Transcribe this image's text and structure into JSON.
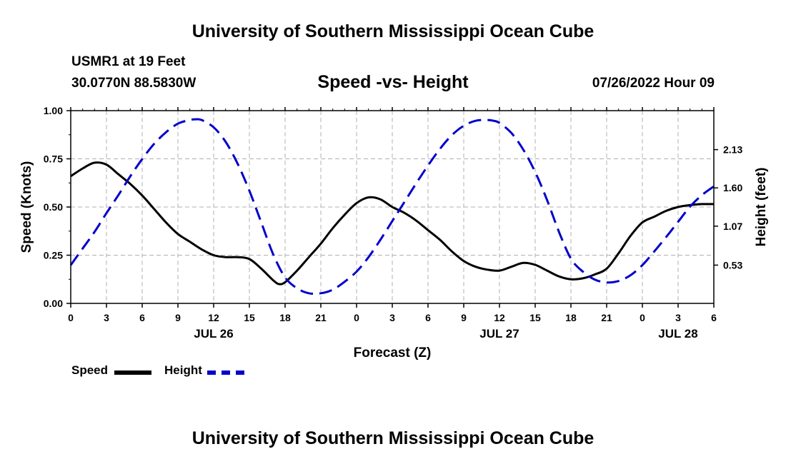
{
  "header": {
    "title": "University of Southern Mississippi Ocean Cube",
    "station": "USMR1 at 19 Feet",
    "coords": "30.0770N  88.5830W",
    "subtitle": "Speed -vs- Height",
    "datetime": "07/26/2022 Hour 09"
  },
  "footer": {
    "title": "University of Southern Mississippi Ocean Cube"
  },
  "legend": {
    "speed_label": "Speed",
    "height_label": "Height"
  },
  "chart_data": {
    "type": "line",
    "title": "Speed -vs- Height",
    "xlabel": "Forecast (Z)",
    "ylabel": "Speed (Knots)",
    "y2label": "Height (feet)",
    "x_unit": "forecast hours from 00Z JUL 26",
    "xlim": [
      0,
      54
    ],
    "ylim": [
      0,
      1
    ],
    "y2lim": [
      0.0,
      2.67
    ],
    "x_ticks": [
      0,
      3,
      6,
      9,
      12,
      15,
      18,
      21,
      24,
      27,
      30,
      33,
      36,
      39,
      42,
      45,
      48,
      51,
      54
    ],
    "x_tick_labels": [
      "0",
      "3",
      "6",
      "9",
      "12",
      "15",
      "18",
      "21",
      "0",
      "3",
      "6",
      "9",
      "12",
      "15",
      "18",
      "21",
      "0",
      "3",
      "6"
    ],
    "y_ticks": [
      0,
      0.25,
      0.5,
      0.75,
      1.0
    ],
    "y_tick_labels": [
      "0.00",
      "0.25",
      "0.50",
      "0.75",
      "1.00"
    ],
    "y2_ticks": [
      0.53,
      1.07,
      1.6,
      2.13
    ],
    "y2_tick_labels": [
      "0.53",
      "1.07",
      "1.60",
      "2.13"
    ],
    "date_labels": [
      {
        "x": 12,
        "label": "JUL 26"
      },
      {
        "x": 36,
        "label": "JUL 27"
      },
      {
        "x": 51,
        "label": "JUL 28"
      }
    ],
    "grid": true,
    "legend_position": "bottom-left",
    "series": [
      {
        "name": "Speed",
        "axis": "left",
        "color": "#000000",
        "style": "solid",
        "x": [
          0,
          1,
          2,
          3,
          4,
          5,
          6,
          7,
          8,
          9,
          10,
          11,
          12,
          13,
          14,
          15,
          16,
          17,
          17.5,
          18,
          19,
          20,
          21,
          22,
          23,
          24,
          25,
          26,
          27,
          28,
          29,
          30,
          31,
          32,
          33,
          34,
          35,
          36,
          37,
          38,
          39,
          40,
          41,
          42,
          43,
          44,
          45,
          46,
          47,
          48,
          49,
          50,
          51,
          52,
          53,
          54
        ],
        "values": [
          0.66,
          0.7,
          0.73,
          0.72,
          0.67,
          0.62,
          0.56,
          0.49,
          0.42,
          0.36,
          0.32,
          0.28,
          0.25,
          0.24,
          0.24,
          0.23,
          0.18,
          0.12,
          0.1,
          0.11,
          0.17,
          0.24,
          0.31,
          0.39,
          0.46,
          0.52,
          0.55,
          0.54,
          0.5,
          0.47,
          0.43,
          0.38,
          0.33,
          0.27,
          0.22,
          0.19,
          0.175,
          0.17,
          0.19,
          0.21,
          0.2,
          0.17,
          0.14,
          0.125,
          0.13,
          0.15,
          0.18,
          0.26,
          0.35,
          0.42,
          0.45,
          0.48,
          0.5,
          0.51,
          0.515,
          0.515
        ]
      },
      {
        "name": "Height",
        "axis": "right",
        "color": "#0000cc",
        "style": "dashed",
        "x": [
          0,
          1,
          2,
          3,
          4,
          5,
          6,
          7,
          8,
          9,
          10,
          10.5,
          11,
          12,
          13,
          14,
          15,
          16,
          17,
          18,
          19,
          20,
          21,
          22,
          23,
          24,
          25,
          26,
          27,
          28,
          29,
          30,
          31,
          32,
          33,
          34,
          35,
          35.5,
          36,
          37,
          38,
          39,
          40,
          41,
          42,
          43,
          44,
          45,
          46,
          47,
          48,
          49,
          50,
          51,
          52,
          53,
          54
        ],
        "values": [
          0.53,
          0.76,
          0.99,
          1.25,
          1.5,
          1.76,
          2.0,
          2.21,
          2.37,
          2.49,
          2.54,
          2.55,
          2.54,
          2.44,
          2.24,
          1.94,
          1.56,
          1.12,
          0.68,
          0.36,
          0.21,
          0.14,
          0.14,
          0.19,
          0.3,
          0.44,
          0.64,
          0.88,
          1.14,
          1.4,
          1.66,
          1.91,
          2.14,
          2.33,
          2.46,
          2.53,
          2.54,
          2.53,
          2.5,
          2.36,
          2.13,
          1.82,
          1.43,
          0.99,
          0.62,
          0.44,
          0.33,
          0.29,
          0.31,
          0.39,
          0.53,
          0.72,
          0.92,
          1.13,
          1.34,
          1.5,
          1.62
        ]
      }
    ]
  }
}
